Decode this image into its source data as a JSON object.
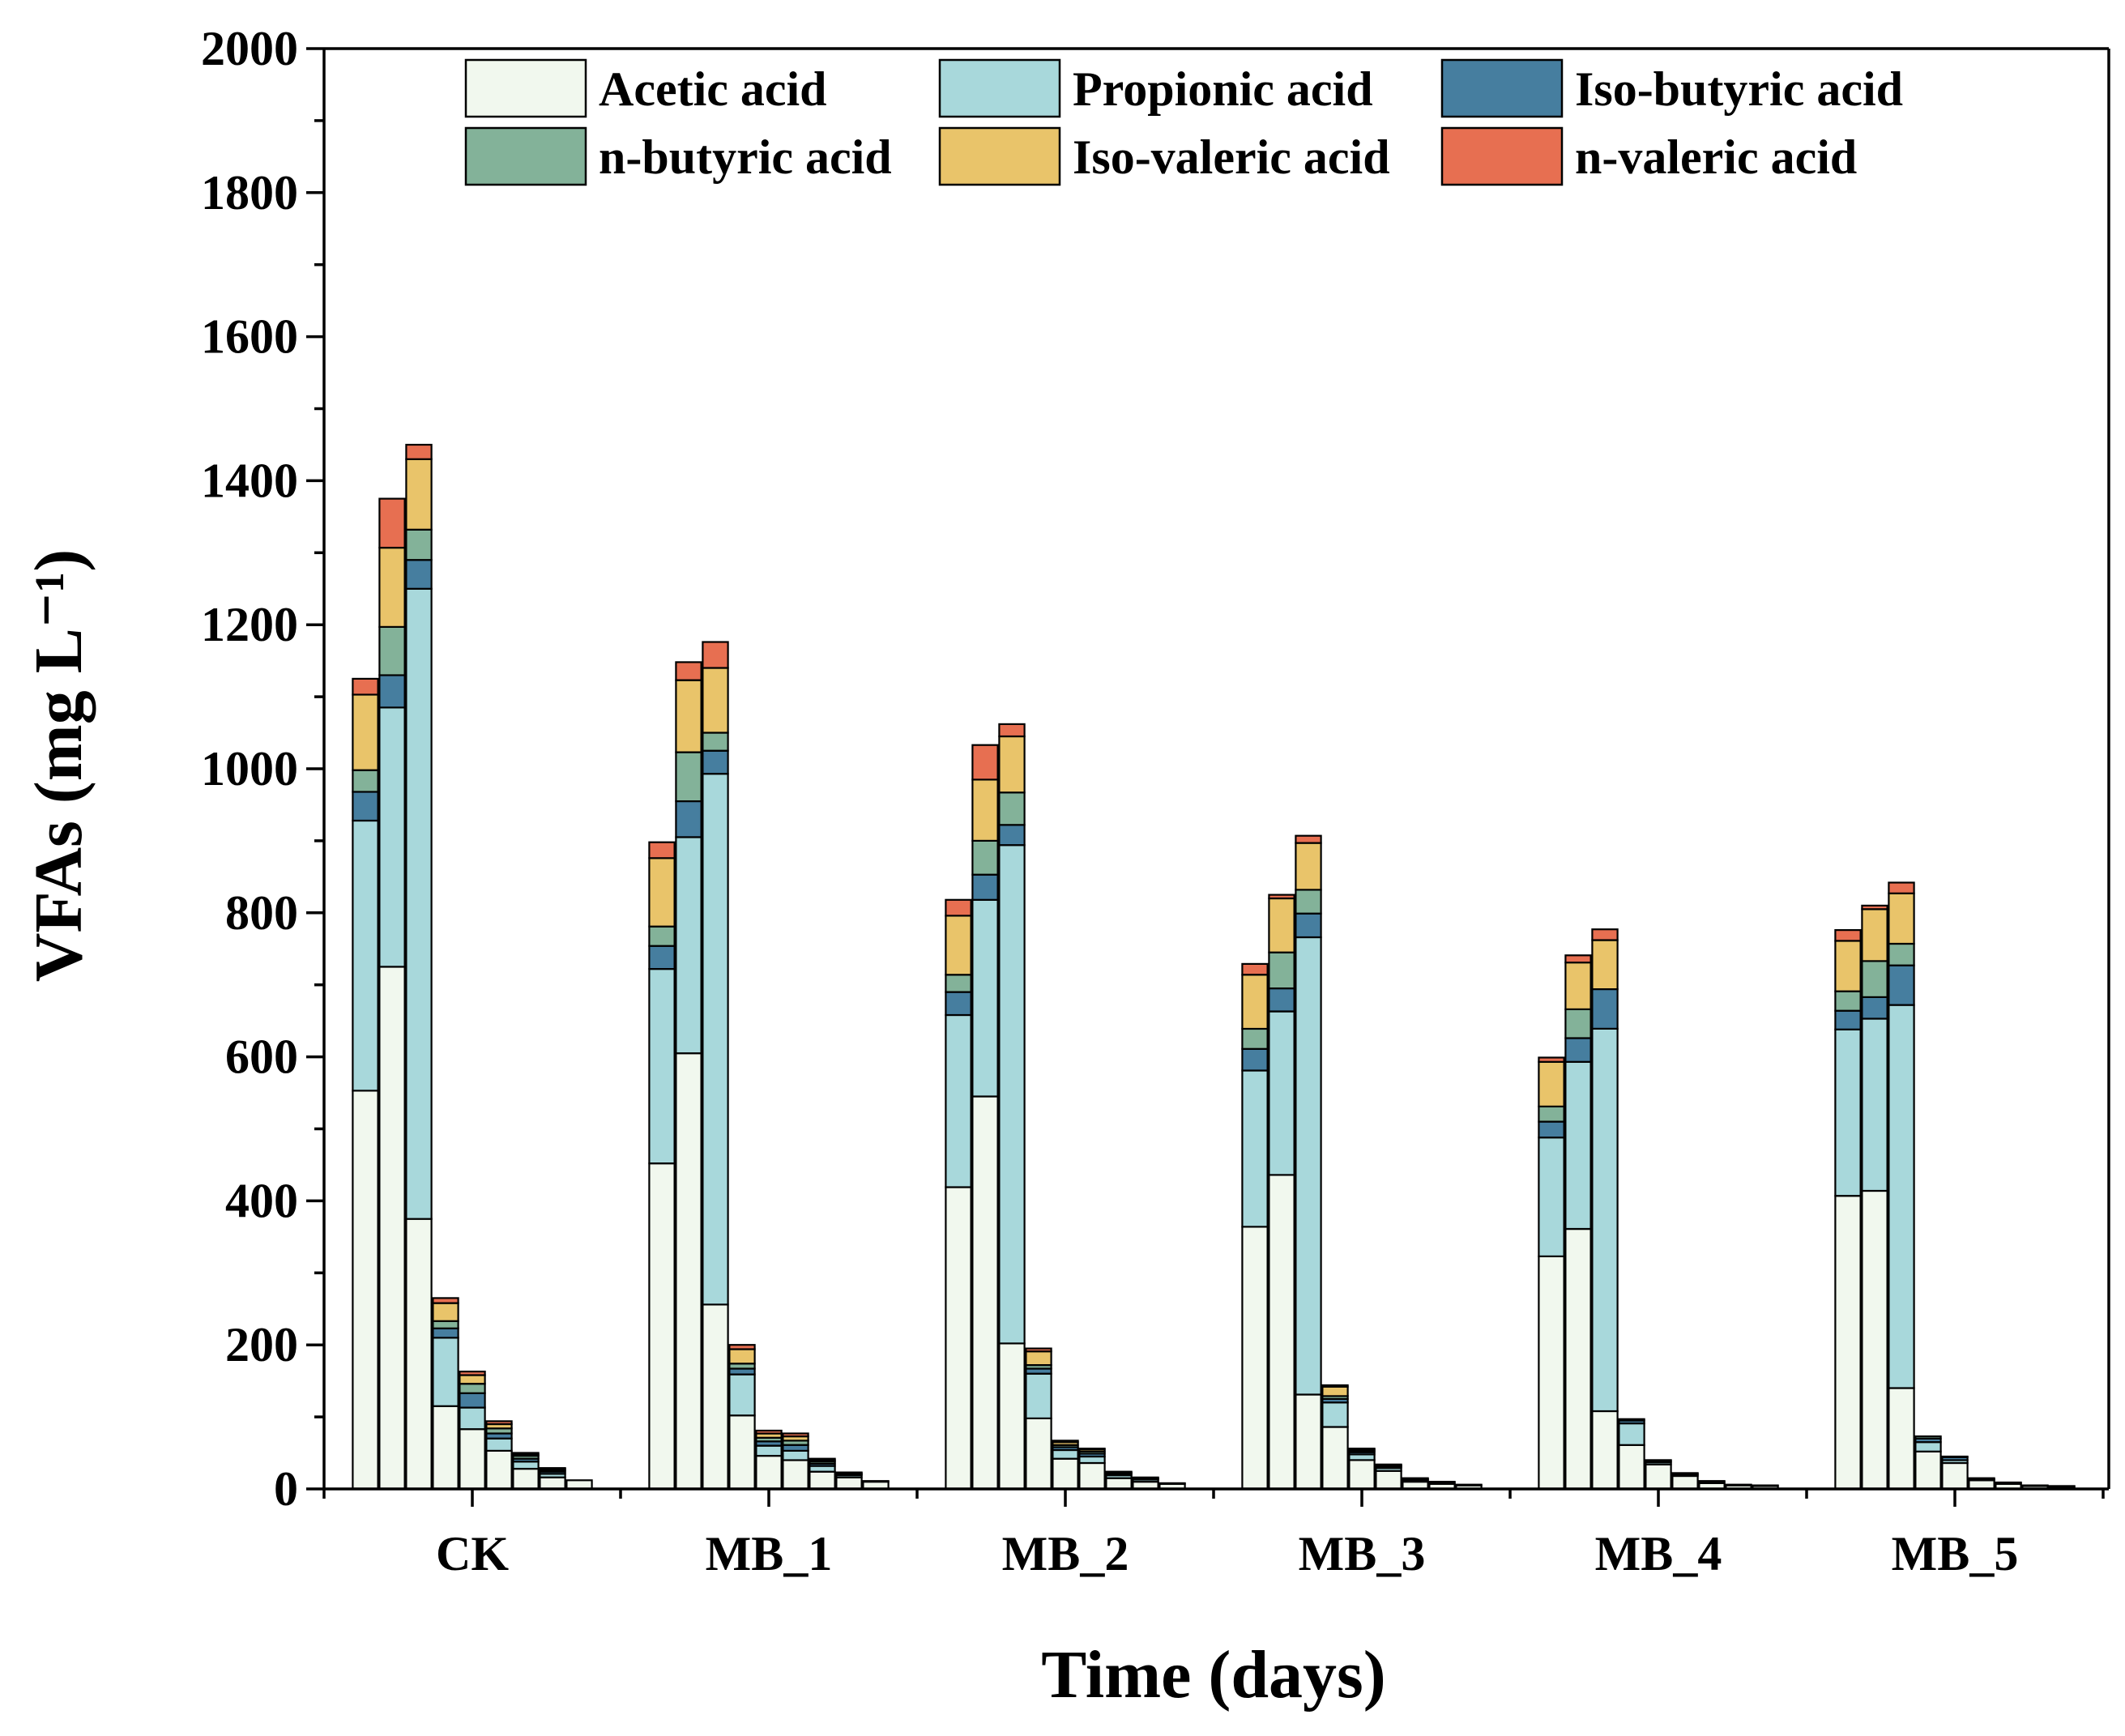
{
  "chart_data": {
    "type": "bar",
    "stacked": true,
    "title": "",
    "xlabel": "Time (days)",
    "ylabel": "VFAs (mg L⁻¹)",
    "ylim": [
      0,
      2000
    ],
    "yticks": [
      "0",
      "200",
      "400",
      "600",
      "800",
      "1000",
      "1200",
      "1400",
      "1600",
      "1800",
      "2000"
    ],
    "ytick_values": [
      0,
      200,
      400,
      600,
      800,
      1000,
      1200,
      1400,
      1600,
      1800,
      2000
    ],
    "legend_position": "top-center",
    "groups": [
      "CK",
      "MB_1",
      "MB_2",
      "MB_3",
      "MB_4",
      "MB_5"
    ],
    "bars_per_group": 9,
    "series": [
      {
        "name": "Acetic acid",
        "color": "#F1F8EE",
        "values": [
          [
            553,
            725,
            375,
            115,
            83,
            53,
            28,
            16,
            12
          ],
          [
            452,
            605,
            256,
            102,
            46,
            40,
            24,
            16,
            10
          ],
          [
            419,
            545,
            202,
            98,
            42,
            36,
            15,
            10,
            7
          ],
          [
            364,
            436,
            131,
            86,
            40,
            25,
            10,
            7,
            5
          ],
          [
            323,
            361,
            108,
            61,
            34,
            18,
            8,
            5,
            4
          ],
          [
            407,
            414,
            140,
            52,
            36,
            12,
            7,
            4,
            3
          ]
        ]
      },
      {
        "name": "Propionic acid",
        "color": "#A8D8DB",
        "values": [
          [
            375,
            360,
            875,
            95,
            30,
            17,
            10,
            5,
            0
          ],
          [
            270,
            300,
            737,
            57,
            14,
            13,
            8,
            3,
            1
          ],
          [
            239,
            273,
            692,
            62,
            12,
            9,
            4,
            3,
            1
          ],
          [
            217,
            227,
            635,
            34,
            8,
            4,
            2,
            2,
            1
          ],
          [
            165,
            232,
            531,
            30,
            3,
            2,
            2,
            1,
            1
          ],
          [
            231,
            239,
            532,
            13,
            4,
            1,
            1,
            1,
            1
          ]
        ]
      },
      {
        "name": "Iso-butyric acid",
        "color": "#467E9F",
        "values": [
          [
            40,
            45,
            40,
            13,
            20,
            7,
            4,
            3,
            0
          ],
          [
            32,
            50,
            32,
            8,
            6,
            8,
            3,
            1,
            0
          ],
          [
            32,
            35,
            28,
            7,
            4,
            4,
            2,
            1,
            0
          ],
          [
            30,
            32,
            33,
            5,
            3,
            2,
            1,
            1,
            0
          ],
          [
            22,
            33,
            55,
            4,
            2,
            1,
            1,
            0,
            0
          ],
          [
            26,
            30,
            55,
            5,
            4,
            1,
            1,
            0,
            0
          ]
        ]
      },
      {
        "name": "n-butyric acid",
        "color": "#83B299",
        "values": [
          [
            30,
            67,
            42,
            10,
            13,
            7,
            4,
            2,
            0
          ],
          [
            27,
            68,
            25,
            7,
            5,
            6,
            3,
            1,
            0
          ],
          [
            24,
            47,
            45,
            5,
            3,
            3,
            1,
            1,
            0
          ],
          [
            28,
            50,
            33,
            4,
            2,
            1,
            1,
            0,
            0
          ],
          [
            21,
            40,
            0,
            2,
            1,
            1,
            0,
            0,
            0
          ],
          [
            27,
            50,
            30,
            3,
            1,
            1,
            0,
            0,
            0
          ]
        ]
      },
      {
        "name": "Iso-valeric acid",
        "color": "#E9C46A",
        "values": [
          [
            105,
            110,
            98,
            25,
            12,
            6,
            2,
            2,
            0
          ],
          [
            95,
            100,
            90,
            20,
            6,
            6,
            2,
            1,
            0
          ],
          [
            82,
            85,
            78,
            19,
            4,
            3,
            1,
            1,
            0
          ],
          [
            75,
            75,
            65,
            13,
            2,
            1,
            1,
            0,
            0
          ],
          [
            62,
            65,
            68,
            0,
            0,
            0,
            0,
            0,
            0
          ],
          [
            70,
            72,
            70,
            0,
            0,
            0,
            0,
            0,
            0
          ]
        ]
      },
      {
        "name": "n-valeric acid",
        "color": "#E76F51",
        "values": [
          [
            22,
            68,
            20,
            7,
            5,
            4,
            2,
            1,
            0
          ],
          [
            22,
            25,
            36,
            6,
            4,
            4,
            2,
            1,
            0
          ],
          [
            22,
            48,
            17,
            4,
            2,
            1,
            1,
            0,
            0
          ],
          [
            15,
            5,
            10,
            2,
            1,
            1,
            0,
            0,
            0
          ],
          [
            6,
            10,
            15,
            0,
            0,
            0,
            0,
            0,
            0
          ],
          [
            15,
            5,
            15,
            0,
            0,
            0,
            0,
            0,
            0
          ]
        ]
      }
    ]
  }
}
